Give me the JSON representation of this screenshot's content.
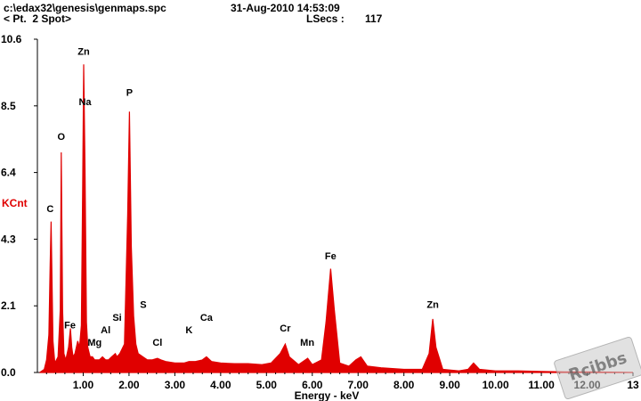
{
  "header": {
    "file_path": "c:\\edax32\\genesis\\genmaps.spc",
    "datetime": "31-Aug-2010 14:53:09",
    "spot_label": "< Pt.  2 Spot>",
    "lsecs_label": "LSecs :",
    "lsecs_value": "117"
  },
  "watermark": "Rcibbs",
  "colors": {
    "spectrum": "#e00000",
    "axis": "#000000",
    "ylabel": "#e00000"
  },
  "chart_data": {
    "type": "area",
    "title": "",
    "xlabel": "Energy - keV",
    "ylabel": "KCnt",
    "xlim": [
      0,
      13
    ],
    "ylim": [
      0,
      10.6
    ],
    "yticks": [
      "0.0",
      "2.1",
      "4.3",
      "6.4",
      "8.5",
      "10.6"
    ],
    "ytick_values": [
      0,
      2.12,
      4.24,
      6.36,
      8.48,
      10.6
    ],
    "xticks": [
      "1.00",
      "2.00",
      "3.00",
      "4.00",
      "5.00",
      "6.00",
      "7.00",
      "8.00",
      "9.00",
      "10.00",
      "11.00",
      "12.00",
      "13"
    ],
    "xtick_values": [
      1,
      2,
      3,
      4,
      5,
      6,
      7,
      8,
      9,
      10,
      11,
      12,
      13
    ],
    "series": [
      {
        "x": [
          0.05,
          0.15,
          0.2,
          0.25,
          0.28,
          0.3,
          0.34,
          0.38,
          0.45,
          0.5,
          0.52,
          0.55,
          0.58,
          0.62,
          0.68,
          0.72,
          0.75,
          0.78,
          0.82,
          0.88,
          0.92,
          0.96,
          0.99,
          1.01,
          1.04,
          1.07,
          1.1,
          1.15,
          1.2,
          1.25,
          1.3,
          1.35,
          1.42,
          1.49,
          1.55,
          1.62,
          1.7,
          1.74,
          1.8,
          1.9,
          1.97,
          2.01,
          2.05,
          2.1,
          2.15,
          2.2,
          2.3,
          2.4,
          2.5,
          2.62,
          2.7,
          2.8,
          3.0,
          3.2,
          3.31,
          3.45,
          3.6,
          3.69,
          3.8,
          4.0,
          4.3,
          4.6,
          4.9,
          5.1,
          5.3,
          5.41,
          5.5,
          5.7,
          5.9,
          6.0,
          6.2,
          6.3,
          6.4,
          6.48,
          6.6,
          6.8,
          6.95,
          7.06,
          7.2,
          7.5,
          8.0,
          8.4,
          8.55,
          8.63,
          8.7,
          8.85,
          9.2,
          9.4,
          9.52,
          9.65,
          10.0,
          10.5,
          11.0,
          11.5,
          12.0,
          12.5,
          13.0
        ],
        "y": [
          0.0,
          0.1,
          0.4,
          1.2,
          3.5,
          4.8,
          1.0,
          0.3,
          0.5,
          2.0,
          7.0,
          2.0,
          0.6,
          0.4,
          0.8,
          1.4,
          0.8,
          0.5,
          0.6,
          1.0,
          0.8,
          1.5,
          6.0,
          9.8,
          6.5,
          1.6,
          0.8,
          0.5,
          0.5,
          0.4,
          0.4,
          0.4,
          0.5,
          0.4,
          0.4,
          0.5,
          0.6,
          0.5,
          0.6,
          0.9,
          5.0,
          8.3,
          4.0,
          1.8,
          0.9,
          0.6,
          0.5,
          0.4,
          0.4,
          0.45,
          0.4,
          0.35,
          0.3,
          0.3,
          0.35,
          0.35,
          0.4,
          0.5,
          0.35,
          0.3,
          0.28,
          0.28,
          0.25,
          0.3,
          0.6,
          0.9,
          0.5,
          0.25,
          0.45,
          0.25,
          0.4,
          1.6,
          3.3,
          2.0,
          0.3,
          0.2,
          0.4,
          0.5,
          0.2,
          0.15,
          0.1,
          0.1,
          0.6,
          1.7,
          0.8,
          0.1,
          0.05,
          0.1,
          0.3,
          0.1,
          0.05,
          0.05,
          0.03,
          0.02,
          0.02,
          0.01,
          0.0
        ]
      }
    ],
    "annotations": [
      {
        "text": "C",
        "x": 0.28,
        "y": 5.1
      },
      {
        "text": "O",
        "x": 0.52,
        "y": 7.4
      },
      {
        "text": "Zn",
        "x": 1.01,
        "y": 10.1
      },
      {
        "text": "Na",
        "x": 1.04,
        "y": 8.5
      },
      {
        "text": "Fe",
        "x": 0.71,
        "y": 1.4
      },
      {
        "text": "Mg",
        "x": 1.25,
        "y": 0.85
      },
      {
        "text": "Al",
        "x": 1.49,
        "y": 1.25
      },
      {
        "text": "Si",
        "x": 1.74,
        "y": 1.65
      },
      {
        "text": "P",
        "x": 2.01,
        "y": 8.8
      },
      {
        "text": "S",
        "x": 2.31,
        "y": 2.05
      },
      {
        "text": "Cl",
        "x": 2.62,
        "y": 0.85
      },
      {
        "text": "K",
        "x": 3.31,
        "y": 1.25
      },
      {
        "text": "Ca",
        "x": 3.69,
        "y": 1.65
      },
      {
        "text": "Cr",
        "x": 5.41,
        "y": 1.3
      },
      {
        "text": "Mn",
        "x": 5.89,
        "y": 0.85
      },
      {
        "text": "Fe",
        "x": 6.4,
        "y": 3.6
      },
      {
        "text": "Zn",
        "x": 8.63,
        "y": 2.05
      }
    ],
    "grid": false
  }
}
